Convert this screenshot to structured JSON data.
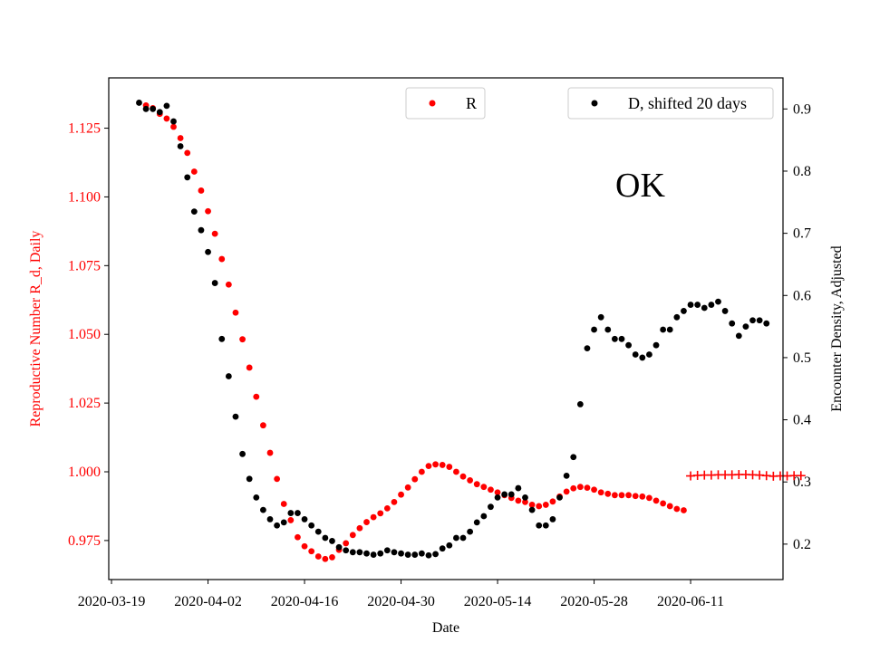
{
  "chart_data": {
    "type": "scatter",
    "xlabel": "Date",
    "ylabel_left": "Reproductive Number R_d, Daily",
    "ylabel_right": "Encounter Density, Adjusted",
    "annotation": "OK",
    "x_start_date": "2020-03-19",
    "x_tick_days": [
      0,
      14,
      28,
      42,
      56,
      70,
      84
    ],
    "x_tick_labels": [
      "2020-03-19",
      "2020-04-02",
      "2020-04-16",
      "2020-04-30",
      "2020-05-14",
      "2020-05-28",
      "2020-06-11"
    ],
    "xlim": [
      -0.4,
      97.4
    ],
    "ylim_left": [
      0.9608,
      1.1433
    ],
    "ylim_right": [
      0.143,
      0.95
    ],
    "yticks_left": [
      0.975,
      1.0,
      1.025,
      1.05,
      1.075,
      1.1,
      1.125
    ],
    "yticks_left_labels": [
      "0.975",
      "1.000",
      "1.025",
      "1.050",
      "1.075",
      "1.100",
      "1.125"
    ],
    "yticks_right": [
      0.2,
      0.3,
      0.4,
      0.5,
      0.6,
      0.7,
      0.8,
      0.9
    ],
    "yticks_right_labels": [
      "0.2",
      "0.3",
      "0.4",
      "0.5",
      "0.6",
      "0.7",
      "0.8",
      "0.9"
    ],
    "colors": {
      "R": "#ff0000",
      "D": "#000000",
      "left_axis": "#ff0000"
    },
    "legend": {
      "R": {
        "label": "R",
        "placement": "upper-center"
      },
      "D": {
        "label": "D, shifted 20 days",
        "placement": "upper-right"
      }
    },
    "series": [
      {
        "name": "R",
        "axis": "left",
        "marker": "dot",
        "x_start_day": 5,
        "values": [
          1.1333,
          1.1323,
          1.1302,
          1.1285,
          1.1255,
          1.1214,
          1.116,
          1.1092,
          1.1023,
          1.0948,
          1.0866,
          1.0774,
          1.0681,
          1.0579,
          1.0482,
          1.0379,
          1.0273,
          1.0169,
          1.0069,
          0.9974,
          0.9883,
          0.9824,
          0.9762,
          0.9729,
          0.9711,
          0.9692,
          0.9683,
          0.9689,
          0.9716,
          0.974,
          0.977,
          0.9795,
          0.9817,
          0.9835,
          0.9849,
          0.9867,
          0.989,
          0.9917,
          0.9943,
          0.9973,
          1.0,
          1.0021,
          1.0027,
          1.0025,
          1.0018,
          1.0,
          0.9983,
          0.9969,
          0.9955,
          0.9945,
          0.9935,
          0.9925,
          0.9915,
          0.9905,
          0.9895,
          0.989,
          0.988,
          0.9875,
          0.988,
          0.9892,
          0.991,
          0.9928,
          0.994,
          0.9945,
          0.9942,
          0.9935,
          0.9925,
          0.992,
          0.9915,
          0.9915,
          0.9915,
          0.9912,
          0.991,
          0.9905,
          0.9895,
          0.9885,
          0.9875,
          0.9865,
          0.986
        ]
      },
      {
        "name": "R",
        "axis": "left",
        "marker": "plus",
        "x_start_day": 84,
        "values": [
          0.9985,
          0.9987,
          0.9988,
          0.9988,
          0.9989,
          0.9989,
          0.9989,
          0.999,
          0.999,
          0.9989,
          0.9988,
          0.9986,
          0.9984,
          0.9985,
          0.9985,
          0.9986,
          0.9986
        ]
      },
      {
        "name": "D, shifted 20 days",
        "axis": "right",
        "marker": "dot",
        "x_start_day": 4,
        "values": [
          0.91,
          0.9,
          0.9,
          0.895,
          0.905,
          0.88,
          0.84,
          0.79,
          0.735,
          0.705,
          0.67,
          0.62,
          0.53,
          0.47,
          0.405,
          0.345,
          0.305,
          0.275,
          0.255,
          0.24,
          0.23,
          0.235,
          0.25,
          0.25,
          0.24,
          0.23,
          0.22,
          0.21,
          0.205,
          0.195,
          0.19,
          0.187,
          0.187,
          0.185,
          0.183,
          0.185,
          0.19,
          0.187,
          0.185,
          0.183,
          0.183,
          0.185,
          0.182,
          0.184,
          0.193,
          0.198,
          0.21,
          0.21,
          0.22,
          0.235,
          0.245,
          0.26,
          0.275,
          0.28,
          0.28,
          0.29,
          0.275,
          0.255,
          0.23,
          0.23,
          0.24,
          0.275,
          0.31,
          0.34,
          0.425,
          0.515,
          0.545,
          0.565,
          0.545,
          0.53,
          0.53,
          0.52,
          0.505,
          0.5,
          0.505,
          0.52,
          0.545,
          0.545,
          0.565,
          0.575,
          0.585,
          0.585,
          0.58,
          0.585,
          0.59,
          0.575,
          0.555,
          0.535,
          0.55,
          0.56,
          0.56,
          0.555
        ]
      }
    ]
  }
}
